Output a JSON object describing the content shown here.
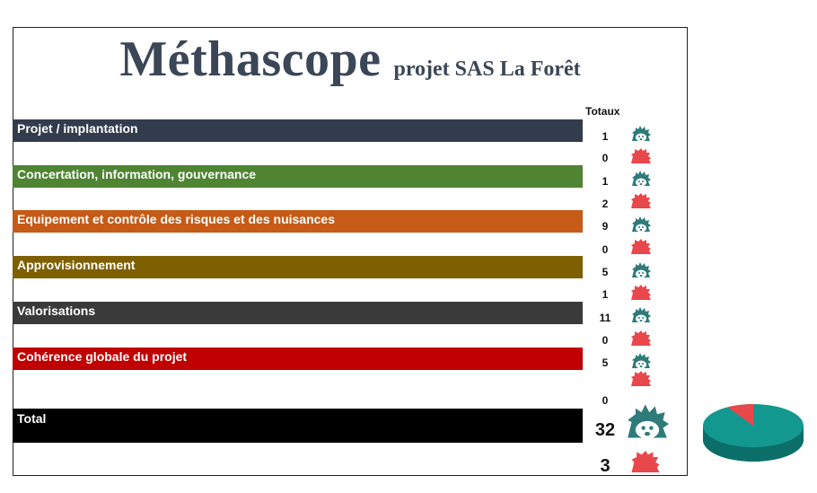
{
  "title": {
    "main": "Méthascope",
    "subtitle": "projet SAS La Forêt"
  },
  "totals_header": "Totaux",
  "categories": [
    {
      "label": "Projet / implantation",
      "color": "#323c4d",
      "positive": "1",
      "negative": "0"
    },
    {
      "label": "Concertation, information, gouvernance",
      "color": "#4e8432",
      "positive": "1",
      "negative": "2"
    },
    {
      "label": "Equipement et contrôle des risques et des nuisances",
      "color": "#c65a17",
      "positive": "9",
      "negative": "0"
    },
    {
      "label": "Approvisionnement",
      "color": "#7f6000",
      "positive": "5",
      "negative": "1"
    },
    {
      "label": "Valorisations",
      "color": "#3a3a3a",
      "positive": "11",
      "negative": "0"
    },
    {
      "label": "Cohérence globale du projet",
      "color": "#c00000",
      "positive": "5",
      "negative": "0"
    }
  ],
  "total": {
    "label": "Total",
    "color": "#000000",
    "positive": "32",
    "negative": "3"
  },
  "icons": {
    "positive": "teal-hedgehog-icon",
    "negative": "red-hedgehog-icon",
    "positive_color": "#2e7b7a",
    "negative_color": "#e8484b"
  },
  "pie": {
    "positive_share": 0.914,
    "negative_share": 0.086,
    "positive_color": "#139890",
    "negative_color": "#e8484b"
  }
}
